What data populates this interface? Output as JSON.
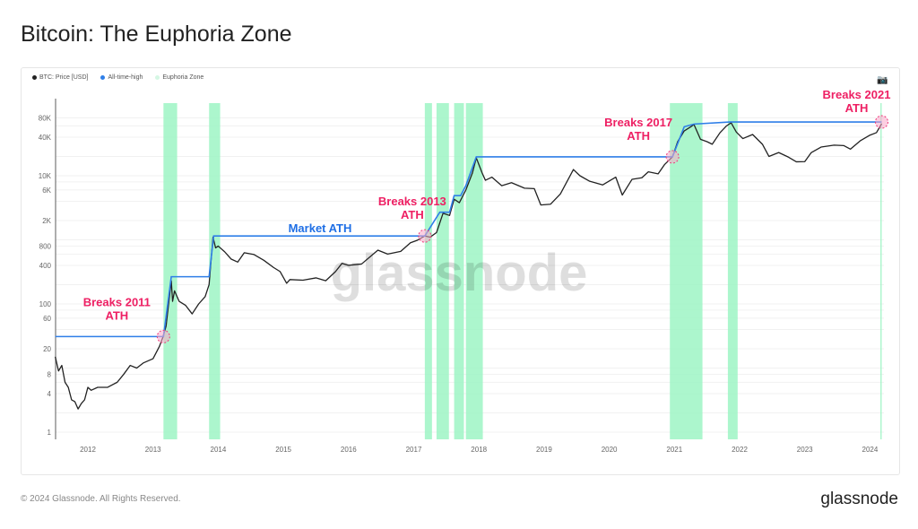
{
  "title": "Bitcoin: The Euphoria Zone",
  "footer": "© 2024 Glassnode. All Rights Reserved.",
  "logo": "glassnode",
  "watermark": "glassnode",
  "camera_icon": "camera-icon",
  "legend": [
    {
      "label": "BTC: Price [USD]",
      "color": "#222222"
    },
    {
      "label": "All-time-high",
      "color": "#2f7fe8"
    },
    {
      "label": "Euphoria Zone",
      "color": "#d5f7e4"
    }
  ],
  "chart_data": {
    "type": "line",
    "yscale": "log",
    "ylim": [
      1,
      150000
    ],
    "xlim": [
      2011.5,
      2024.2
    ],
    "yticks": [
      "1",
      "4",
      "8",
      "20",
      "60",
      "100",
      "400",
      "800",
      "2K",
      "6K",
      "10K",
      "40K",
      "80K"
    ],
    "ytick_values": [
      1,
      4,
      8,
      20,
      60,
      100,
      400,
      800,
      2000,
      6000,
      10000,
      40000,
      80000
    ],
    "xticks": [
      "2012",
      "2013",
      "2014",
      "2015",
      "2016",
      "2017",
      "2018",
      "2019",
      "2020",
      "2021",
      "2022",
      "2023",
      "2024"
    ],
    "price": [
      [
        2011.5,
        15
      ],
      [
        2011.55,
        9
      ],
      [
        2011.6,
        11
      ],
      [
        2011.65,
        6
      ],
      [
        2011.7,
        5
      ],
      [
        2011.75,
        3.2
      ],
      [
        2011.8,
        3
      ],
      [
        2011.85,
        2.3
      ],
      [
        2011.9,
        2.8
      ],
      [
        2011.95,
        3.2
      ],
      [
        2012.0,
        5
      ],
      [
        2012.05,
        4.5
      ],
      [
        2012.15,
        5
      ],
      [
        2012.3,
        5
      ],
      [
        2012.45,
        6
      ],
      [
        2012.55,
        8
      ],
      [
        2012.65,
        11
      ],
      [
        2012.75,
        10
      ],
      [
        2012.85,
        12
      ],
      [
        2013.0,
        14
      ],
      [
        2013.1,
        22
      ],
      [
        2013.15,
        30
      ],
      [
        2013.2,
        45
      ],
      [
        2013.28,
        230
      ],
      [
        2013.3,
        110
      ],
      [
        2013.33,
        160
      ],
      [
        2013.4,
        110
      ],
      [
        2013.5,
        95
      ],
      [
        2013.6,
        70
      ],
      [
        2013.7,
        100
      ],
      [
        2013.8,
        130
      ],
      [
        2013.86,
        200
      ],
      [
        2013.92,
        1100
      ],
      [
        2013.96,
        750
      ],
      [
        2014.0,
        800
      ],
      [
        2014.1,
        650
      ],
      [
        2014.2,
        500
      ],
      [
        2014.3,
        450
      ],
      [
        2014.4,
        630
      ],
      [
        2014.55,
        590
      ],
      [
        2014.7,
        480
      ],
      [
        2014.85,
        370
      ],
      [
        2014.95,
        320
      ],
      [
        2015.05,
        210
      ],
      [
        2015.1,
        240
      ],
      [
        2015.3,
        235
      ],
      [
        2015.5,
        255
      ],
      [
        2015.65,
        230
      ],
      [
        2015.8,
        320
      ],
      [
        2015.9,
        430
      ],
      [
        2016.0,
        400
      ],
      [
        2016.2,
        420
      ],
      [
        2016.45,
        690
      ],
      [
        2016.6,
        600
      ],
      [
        2016.8,
        660
      ],
      [
        2016.95,
        900
      ],
      [
        2017.05,
        980
      ],
      [
        2017.17,
        1150
      ],
      [
        2017.25,
        1100
      ],
      [
        2017.35,
        1300
      ],
      [
        2017.45,
        2600
      ],
      [
        2017.55,
        2400
      ],
      [
        2017.62,
        4300
      ],
      [
        2017.7,
        3800
      ],
      [
        2017.8,
        6000
      ],
      [
        2017.9,
        11000
      ],
      [
        2017.96,
        19000
      ],
      [
        2018.05,
        11000
      ],
      [
        2018.1,
        8500
      ],
      [
        2018.2,
        9500
      ],
      [
        2018.35,
        7000
      ],
      [
        2018.5,
        7800
      ],
      [
        2018.7,
        6400
      ],
      [
        2018.85,
        6300
      ],
      [
        2018.95,
        3500
      ],
      [
        2019.1,
        3600
      ],
      [
        2019.25,
        5200
      ],
      [
        2019.45,
        12500
      ],
      [
        2019.55,
        10000
      ],
      [
        2019.7,
        8200
      ],
      [
        2019.9,
        7200
      ],
      [
        2020.1,
        9500
      ],
      [
        2020.2,
        5000
      ],
      [
        2020.35,
        8800
      ],
      [
        2020.5,
        9300
      ],
      [
        2020.6,
        11500
      ],
      [
        2020.75,
        10700
      ],
      [
        2020.85,
        15000
      ],
      [
        2020.97,
        19700
      ],
      [
        2021.05,
        34000
      ],
      [
        2021.15,
        50000
      ],
      [
        2021.25,
        58000
      ],
      [
        2021.3,
        63000
      ],
      [
        2021.4,
        37000
      ],
      [
        2021.5,
        34000
      ],
      [
        2021.58,
        31000
      ],
      [
        2021.7,
        47000
      ],
      [
        2021.8,
        60000
      ],
      [
        2021.87,
        67000
      ],
      [
        2021.95,
        48000
      ],
      [
        2022.05,
        38000
      ],
      [
        2022.2,
        44000
      ],
      [
        2022.35,
        31000
      ],
      [
        2022.45,
        20000
      ],
      [
        2022.6,
        23000
      ],
      [
        2022.75,
        19500
      ],
      [
        2022.87,
        16500
      ],
      [
        2023.0,
        16600
      ],
      [
        2023.1,
        23000
      ],
      [
        2023.25,
        28000
      ],
      [
        2023.45,
        30000
      ],
      [
        2023.6,
        29500
      ],
      [
        2023.7,
        26000
      ],
      [
        2023.85,
        35000
      ],
      [
        2024.0,
        43000
      ],
      [
        2024.1,
        47000
      ],
      [
        2024.18,
        65000
      ]
    ],
    "all_time_high": [
      [
        2011.5,
        31
      ],
      [
        2013.16,
        31
      ],
      [
        2013.28,
        266
      ],
      [
        2013.86,
        266
      ],
      [
        2013.93,
        1150
      ],
      [
        2017.17,
        1150
      ],
      [
        2017.4,
        2700
      ],
      [
        2017.55,
        2700
      ],
      [
        2017.62,
        4900
      ],
      [
        2017.72,
        4900
      ],
      [
        2017.8,
        7000
      ],
      [
        2017.96,
        19700
      ],
      [
        2020.97,
        19700
      ],
      [
        2021.15,
        58000
      ],
      [
        2021.3,
        64000
      ],
      [
        2021.85,
        69000
      ],
      [
        2024.18,
        69000
      ]
    ],
    "euphoria_zones": [
      [
        2013.16,
        2013.37
      ],
      [
        2013.86,
        2014.03
      ],
      [
        2017.17,
        2017.28
      ],
      [
        2017.35,
        2017.54
      ],
      [
        2017.62,
        2017.77
      ],
      [
        2017.8,
        2018.06
      ],
      [
        2020.93,
        2021.43
      ],
      [
        2021.82,
        2021.97
      ],
      [
        2024.16,
        2024.18
      ]
    ],
    "annotations": [
      {
        "line1": "Breaks 2011",
        "line2": "ATH",
        "x": 2013.16,
        "y": 31
      },
      {
        "line1": "Breaks 2013",
        "line2": "ATH",
        "x": 2017.17,
        "y": 1150
      },
      {
        "line1": "Breaks 2017",
        "line2": "ATH",
        "x": 2020.97,
        "y": 19700
      },
      {
        "line1": "Breaks 2021",
        "line2": "ATH",
        "x": 2024.18,
        "y": 69000
      }
    ],
    "market_ath_label": "Market ATH"
  }
}
